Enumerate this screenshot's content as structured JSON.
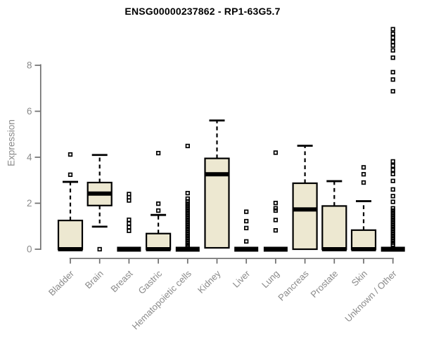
{
  "page": {
    "background": "#ffffff"
  },
  "chart_data": {
    "type": "boxplot",
    "title": "ENSG00000237862 - RP1-63G5.7",
    "ylabel": "Expression",
    "xlabel": "",
    "ylim": [
      0,
      9.7
    ],
    "yticks": [
      0,
      2,
      4,
      6,
      8
    ],
    "grid": false,
    "legend": "none",
    "colors": {
      "box_fill": "#EDE8D1",
      "box_stroke": "#000000",
      "median": "#000000",
      "axis": "#6f6f6f",
      "tick_label": "#8a8a8a",
      "title": "#000000",
      "background": "#ffffff"
    },
    "categories": [
      "Bladder",
      "Brain",
      "Breast",
      "Gastric",
      "Hematopoietic cells",
      "Kidney",
      "Liver",
      "Lung",
      "Pancreas",
      "Prostate",
      "Skin",
      "Unknown / Other"
    ],
    "series": [
      {
        "name": "Bladder",
        "whisker_low": 0,
        "q1": 0,
        "median": 0,
        "q3": 1.25,
        "whisker_high": 2.93,
        "outliers": [
          4.12,
          3.24
        ]
      },
      {
        "name": "Brain",
        "whisker_low": 0.98,
        "q1": 1.9,
        "median": 2.42,
        "q3": 2.9,
        "whisker_high": 4.1,
        "outliers": [
          0
        ]
      },
      {
        "name": "Breast",
        "whisker_low": 0,
        "q1": 0,
        "median": 0,
        "q3": 0,
        "whisker_high": 0,
        "outliers": [
          2.4,
          2.26,
          2.12,
          1.28,
          1.12,
          0.96,
          0.8
        ]
      },
      {
        "name": "Gastric",
        "whisker_low": 0,
        "q1": 0,
        "median": 0,
        "q3": 0.68,
        "whisker_high": 1.49,
        "outliers": [
          4.18,
          1.98,
          1.68
        ]
      },
      {
        "name": "Hematopoietic cells",
        "whisker_low": 0,
        "q1": 0,
        "median": 0,
        "q3": 0,
        "whisker_high": 0,
        "outliers": [
          4.49,
          2.44,
          2.2,
          2.08,
          1.98,
          1.88,
          1.78,
          1.68,
          1.58,
          1.48,
          1.38,
          1.28,
          1.18,
          1.08,
          0.98,
          0.88,
          0.78,
          0.68,
          0.58,
          0.48,
          0.38,
          0.28,
          0.18,
          0.1
        ]
      },
      {
        "name": "Kidney",
        "whisker_low": 0.06,
        "q1": 0.06,
        "median": 3.26,
        "q3": 3.95,
        "whisker_high": 5.6,
        "outliers": []
      },
      {
        "name": "Liver",
        "whisker_low": 0,
        "q1": 0,
        "median": 0,
        "q3": 0,
        "whisker_high": 0,
        "outliers": [
          1.63,
          1.22,
          0.92,
          0.34
        ]
      },
      {
        "name": "Lung",
        "whisker_low": 0,
        "q1": 0,
        "median": 0,
        "q3": 0,
        "whisker_high": 0,
        "outliers": [
          4.2,
          2.01,
          1.78,
          1.68,
          1.27,
          0.82
        ]
      },
      {
        "name": "Pancreas",
        "whisker_low": 0,
        "q1": 0,
        "median": 1.73,
        "q3": 2.87,
        "whisker_high": 4.5,
        "outliers": []
      },
      {
        "name": "Prostate",
        "whisker_low": 0,
        "q1": 0,
        "median": 0,
        "q3": 1.88,
        "whisker_high": 2.96,
        "outliers": []
      },
      {
        "name": "Skin",
        "whisker_low": 0,
        "q1": 0,
        "median": 0,
        "q3": 0.83,
        "whisker_high": 2.09,
        "outliers": [
          3.56,
          3.26,
          2.9
        ]
      },
      {
        "name": "Unknown / Other",
        "whisker_low": 0,
        "q1": 0,
        "median": 0,
        "q3": 0,
        "whisker_high": 0,
        "outliers": [
          9.57,
          9.37,
          9.2,
          9.02,
          8.86,
          8.65,
          8.33,
          7.7,
          7.38,
          6.87,
          3.82,
          3.63,
          3.45,
          3.27,
          2.97,
          2.6,
          2.31,
          2.06,
          1.78,
          1.68,
          1.58,
          1.48,
          1.38,
          1.28,
          1.18,
          1.08,
          0.98,
          0.88,
          0.78,
          0.68,
          0.58,
          0.48,
          0.38,
          0.28,
          0.2
        ]
      }
    ]
  }
}
